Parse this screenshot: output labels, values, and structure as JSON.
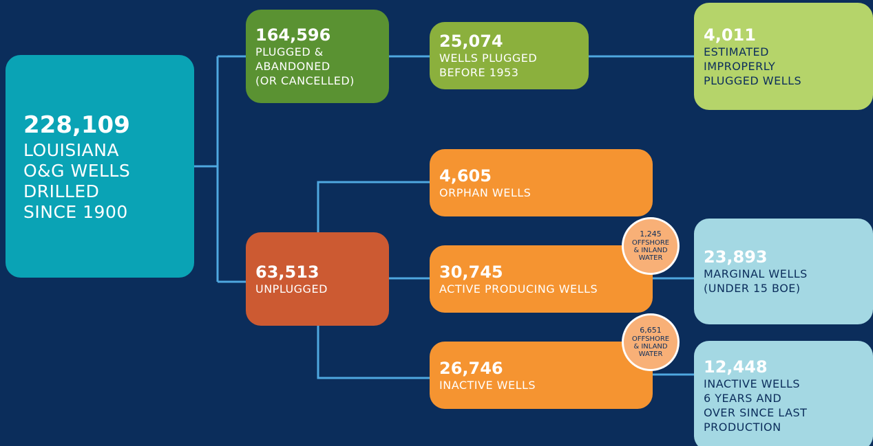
{
  "nodes": [
    {
      "value": "228,109",
      "lines": [
        "LOUISIANA",
        "O&G WELLS",
        "DRILLED",
        "SINCE 1900"
      ]
    },
    {
      "value": "164,596",
      "lines": [
        "PLUGGED &",
        "ABANDONED",
        "(OR CANCELLED)"
      ]
    },
    {
      "value": "25,074",
      "lines": [
        "WELLS PLUGGED",
        "BEFORE 1953"
      ]
    },
    {
      "value": "4,011",
      "lines": [
        "ESTIMATED",
        "IMPROPERLY",
        "PLUGGED WELLS"
      ]
    },
    {
      "value": "63,513",
      "lines": [
        "UNPLUGGED"
      ]
    },
    {
      "value": "4,605",
      "lines": [
        "ORPHAN WELLS"
      ]
    },
    {
      "value": "30,745",
      "lines": [
        "ACTIVE PRODUCING WELLS"
      ]
    },
    {
      "value": "26,746",
      "lines": [
        "INACTIVE WELLS"
      ]
    },
    {
      "value": "23,893",
      "lines": [
        "MARGINAL WELLS",
        "(UNDER 15 BOE)"
      ]
    },
    {
      "value": "12,448",
      "lines": [
        "INACTIVE WELLS",
        "6 YEARS AND",
        "OVER SINCE LAST",
        "PRODUCTION"
      ]
    }
  ],
  "badges": [
    {
      "value": "1,245",
      "lines": [
        "OFFSHORE",
        "& INLAND",
        "WATER"
      ]
    },
    {
      "value": "6,651",
      "lines": [
        "OFFSHORE",
        "& INLAND",
        "WATER"
      ]
    }
  ]
}
